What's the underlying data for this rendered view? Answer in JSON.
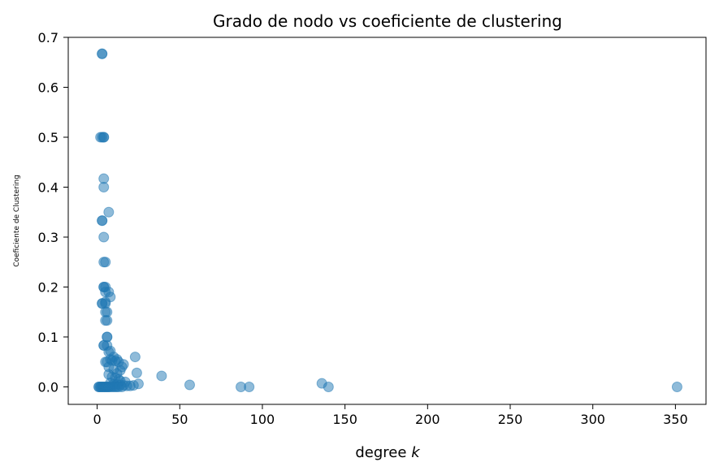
{
  "chart_data": {
    "type": "scatter",
    "title": "Grado de nodo vs coeficiente de clustering",
    "xlabel": "degree k",
    "xlabel_prefix": "degree ",
    "xlabel_var": "k",
    "ylabel": "Coeficiente de Clustering",
    "xlim": [
      -17.5,
      368.5
    ],
    "ylim": [
      -0.035,
      0.7
    ],
    "xticks": [
      0,
      50,
      100,
      150,
      200,
      250,
      300,
      350
    ],
    "yticks": [
      0.0,
      0.1,
      0.2,
      0.3,
      0.4,
      0.5,
      0.6,
      0.7
    ],
    "xtick_labels": [
      "0",
      "50",
      "100",
      "150",
      "200",
      "250",
      "300",
      "350"
    ],
    "ytick_labels": [
      "0.0",
      "0.1",
      "0.2",
      "0.3",
      "0.4",
      "0.5",
      "0.6",
      "0.7"
    ],
    "grid": false,
    "color": "#1f77b4",
    "alpha": 0.5,
    "series": [
      {
        "x": [
          3,
          3,
          2,
          3,
          4,
          4,
          4,
          4,
          3,
          3,
          4,
          5,
          7,
          4,
          4,
          5,
          4,
          5,
          5,
          7,
          8,
          3,
          3,
          5,
          6,
          6,
          5,
          5,
          6,
          6,
          6,
          4,
          4,
          7,
          8,
          10,
          12,
          5,
          6,
          8,
          9,
          11,
          13,
          16,
          7,
          10,
          14,
          15,
          23,
          7,
          12,
          24,
          9,
          11,
          13,
          14,
          17,
          39,
          8,
          10,
          12,
          14,
          16,
          18,
          20,
          22,
          25,
          1,
          1,
          2,
          2,
          3,
          3,
          4,
          4,
          5,
          5,
          6,
          6,
          7,
          7,
          8,
          9,
          10,
          11,
          12,
          13,
          15,
          56,
          87,
          92,
          136,
          140,
          351
        ],
        "y": [
          0.667,
          0.667,
          0.5,
          0.5,
          0.5,
          0.5,
          0.417,
          0.4,
          0.333,
          0.333,
          0.3,
          0.25,
          0.35,
          0.25,
          0.2,
          0.2,
          0.2,
          0.19,
          0.17,
          0.19,
          0.18,
          0.167,
          0.167,
          0.167,
          0.15,
          0.133,
          0.15,
          0.133,
          0.1,
          0.1,
          0.083,
          0.083,
          0.083,
          0.07,
          0.072,
          0.06,
          0.055,
          0.05,
          0.05,
          0.055,
          0.053,
          0.052,
          0.05,
          0.045,
          0.04,
          0.035,
          0.033,
          0.04,
          0.06,
          0.025,
          0.027,
          0.028,
          0.02,
          0.018,
          0.015,
          0.012,
          0.01,
          0.022,
          0.008,
          0.006,
          0.005,
          0.004,
          0.003,
          0.002,
          0.002,
          0.003,
          0.006,
          0.0,
          0.0,
          0.0,
          0.0,
          0.0,
          0.0,
          0.0,
          0.0,
          0.0,
          0.0,
          0.0,
          0.0,
          0.0,
          0.0,
          0.0,
          0.0,
          0.0,
          0.0,
          0.0,
          0.0,
          0.0,
          0.004,
          0.0,
          0.0,
          0.007,
          0.0,
          0.0
        ]
      }
    ]
  }
}
